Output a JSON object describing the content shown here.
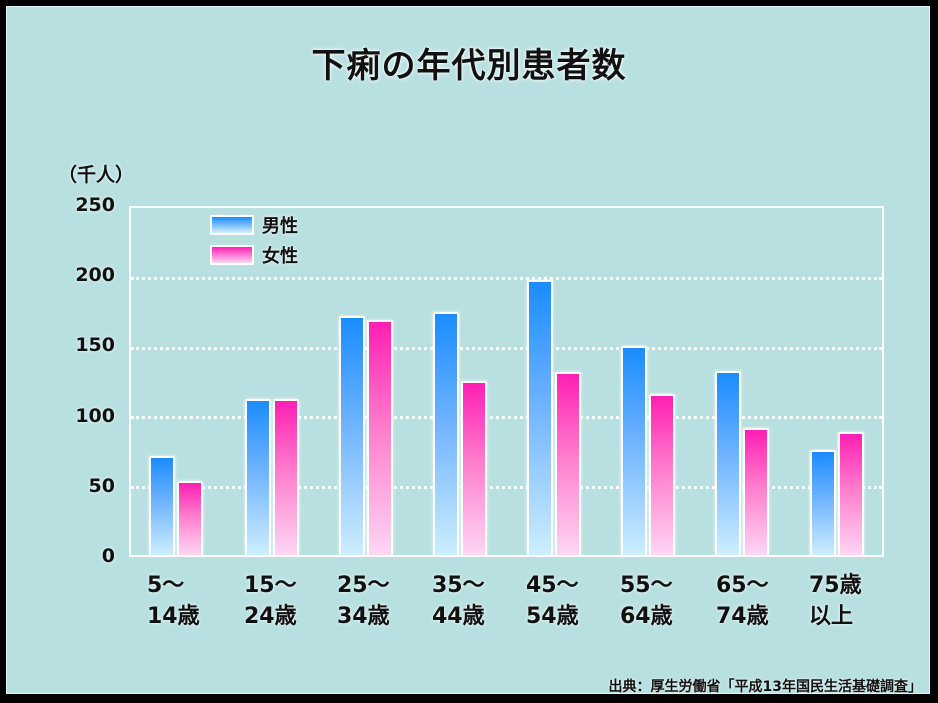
{
  "chart_data": {
    "type": "bar",
    "title": "下痢の年代別患者数",
    "ylabel": "（千人）",
    "xlabel": "",
    "ylim": [
      0,
      250
    ],
    "yticks": [
      "250",
      "200",
      "150",
      "100",
      "50",
      "0"
    ],
    "grid": true,
    "legend_position": "top-left inside plot",
    "categories": [
      "5～14歳",
      "15～24歳",
      "25～34歳",
      "35～44歳",
      "45～54歳",
      "55～64歳",
      "65～74歳",
      "75歳以上"
    ],
    "category_lines": [
      [
        "5～",
        "14歳"
      ],
      [
        "15～",
        "24歳"
      ],
      [
        "25～",
        "34歳"
      ],
      [
        "35～",
        "44歳"
      ],
      [
        "45～",
        "54歳"
      ],
      [
        "55～",
        "64歳"
      ],
      [
        "65～",
        "74歳"
      ],
      [
        "75歳",
        "以上"
      ]
    ],
    "series": [
      {
        "name": "男性",
        "color": "#1a8cff",
        "values": [
          71,
          112,
          171,
          174,
          197,
          150,
          132,
          75
        ]
      },
      {
        "name": "女性",
        "color": "#ff1fb3",
        "values": [
          53,
          112,
          168,
          125,
          131,
          115,
          91,
          88
        ]
      }
    ],
    "source": "出典：厚生労働省「平成13年国民生活基礎調査」"
  }
}
